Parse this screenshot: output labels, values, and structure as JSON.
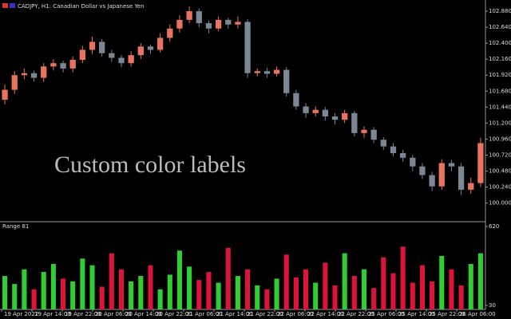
{
  "chart_data": [
    {
      "type": "candlestick",
      "title": "CADJPY, H1:  Canadian Dollar vs Japanese Yen",
      "annotation": "Custom color labels",
      "up_color": "#e8735f",
      "down_color": "#7c8794",
      "ylim": [
        99.732,
        103.048
      ],
      "yticks": [
        {
          "value": 102.88,
          "label": "102.880"
        },
        {
          "value": 102.64,
          "label": "102.640"
        },
        {
          "value": 102.4,
          "label": "102.400"
        },
        {
          "value": 102.16,
          "label": "102.160"
        },
        {
          "value": 101.92,
          "label": "101.920"
        },
        {
          "value": 101.68,
          "label": "101.680"
        },
        {
          "value": 101.44,
          "label": "101.440"
        },
        {
          "value": 101.2,
          "label": "101.200"
        },
        {
          "value": 100.96,
          "label": "100.960"
        },
        {
          "value": 100.72,
          "label": "100.720"
        },
        {
          "value": 100.48,
          "label": "100.480"
        },
        {
          "value": 100.24,
          "label": "100.240"
        },
        {
          "value": 100.0,
          "label": "100.000"
        }
      ],
      "open": [
        101.55,
        101.7,
        101.92,
        101.95,
        101.88,
        102.05,
        102.1,
        102.02,
        102.15,
        102.3,
        102.42,
        102.25,
        102.18,
        102.1,
        102.22,
        102.35,
        102.3,
        102.48,
        102.62,
        102.75,
        102.88,
        102.7,
        102.62,
        102.75,
        102.68,
        102.72,
        101.95,
        101.98,
        101.94,
        102.0,
        101.65,
        101.45,
        101.35,
        101.4,
        101.3,
        101.25,
        101.35,
        101.05,
        101.1,
        100.95,
        100.85,
        100.75,
        100.68,
        100.55,
        100.42,
        100.25,
        100.6,
        100.55,
        100.2,
        100.3
      ],
      "high": [
        101.78,
        101.98,
        102.02,
        101.99,
        102.1,
        102.16,
        102.14,
        102.2,
        102.36,
        102.5,
        102.46,
        102.3,
        102.22,
        102.28,
        102.4,
        102.38,
        102.55,
        102.68,
        102.82,
        102.95,
        102.92,
        102.74,
        102.8,
        102.78,
        102.8,
        102.76,
        102.02,
        102.03,
        102.05,
        102.04,
        101.7,
        101.5,
        101.45,
        101.44,
        101.35,
        101.4,
        101.38,
        101.15,
        101.14,
        100.99,
        100.9,
        100.8,
        100.72,
        100.6,
        100.47,
        100.66,
        100.65,
        100.6,
        100.38,
        100.98
      ],
      "low": [
        101.48,
        101.64,
        101.86,
        101.82,
        101.82,
        101.99,
        101.96,
        101.96,
        102.1,
        102.24,
        102.2,
        102.12,
        102.04,
        102.05,
        102.16,
        102.24,
        102.26,
        102.42,
        102.56,
        102.7,
        102.64,
        102.55,
        102.58,
        102.62,
        102.62,
        101.88,
        101.9,
        101.88,
        101.9,
        101.6,
        101.4,
        101.28,
        101.3,
        101.24,
        101.18,
        101.2,
        101.0,
        100.98,
        100.9,
        100.8,
        100.7,
        100.62,
        100.48,
        100.36,
        100.18,
        100.2,
        100.48,
        100.12,
        100.14,
        100.24
      ],
      "close": [
        101.7,
        101.92,
        101.95,
        101.88,
        102.05,
        102.1,
        102.02,
        102.15,
        102.3,
        102.42,
        102.25,
        102.18,
        102.1,
        102.22,
        102.35,
        102.3,
        102.48,
        102.62,
        102.75,
        102.88,
        102.7,
        102.62,
        102.75,
        102.68,
        102.72,
        101.95,
        101.98,
        101.94,
        102.0,
        101.65,
        101.45,
        101.35,
        101.4,
        101.3,
        101.25,
        101.35,
        101.05,
        101.1,
        100.95,
        100.85,
        100.75,
        100.68,
        100.55,
        100.42,
        100.25,
        100.6,
        100.55,
        100.2,
        100.3,
        100.9
      ]
    },
    {
      "type": "bar",
      "title": "Range 81",
      "up_color": "#32cd32",
      "down_color": "#dc143c",
      "ylim": [
        0,
        650
      ],
      "yticks": [
        30,
        620
      ],
      "values": [
        250,
        190,
        300,
        150,
        280,
        340,
        230,
        210,
        380,
        330,
        170,
        420,
        300,
        210,
        250,
        330,
        150,
        260,
        440,
        320,
        220,
        280,
        200,
        460,
        250,
        300,
        180,
        150,
        230,
        410,
        240,
        300,
        200,
        350,
        180,
        420,
        250,
        300,
        160,
        390,
        270,
        470,
        200,
        330,
        210,
        400,
        300,
        180,
        340,
        420
      ],
      "time_labels": [
        "19 Apr 2022",
        "19 Apr 14:00",
        "19 Apr 22:00",
        "20 Apr 06:00",
        "20 Apr 14:00",
        "20 Apr 22:00",
        "21 Apr 06:00",
        "21 Apr 14:00",
        "21 Apr 22:00",
        "22 Apr 06:00",
        "22 Apr 14:00",
        "22 Apr 22:00",
        "25 Apr 06:00",
        "25 Apr 14:00",
        "25 Apr 22:00",
        "26 Apr 06:00"
      ]
    }
  ]
}
